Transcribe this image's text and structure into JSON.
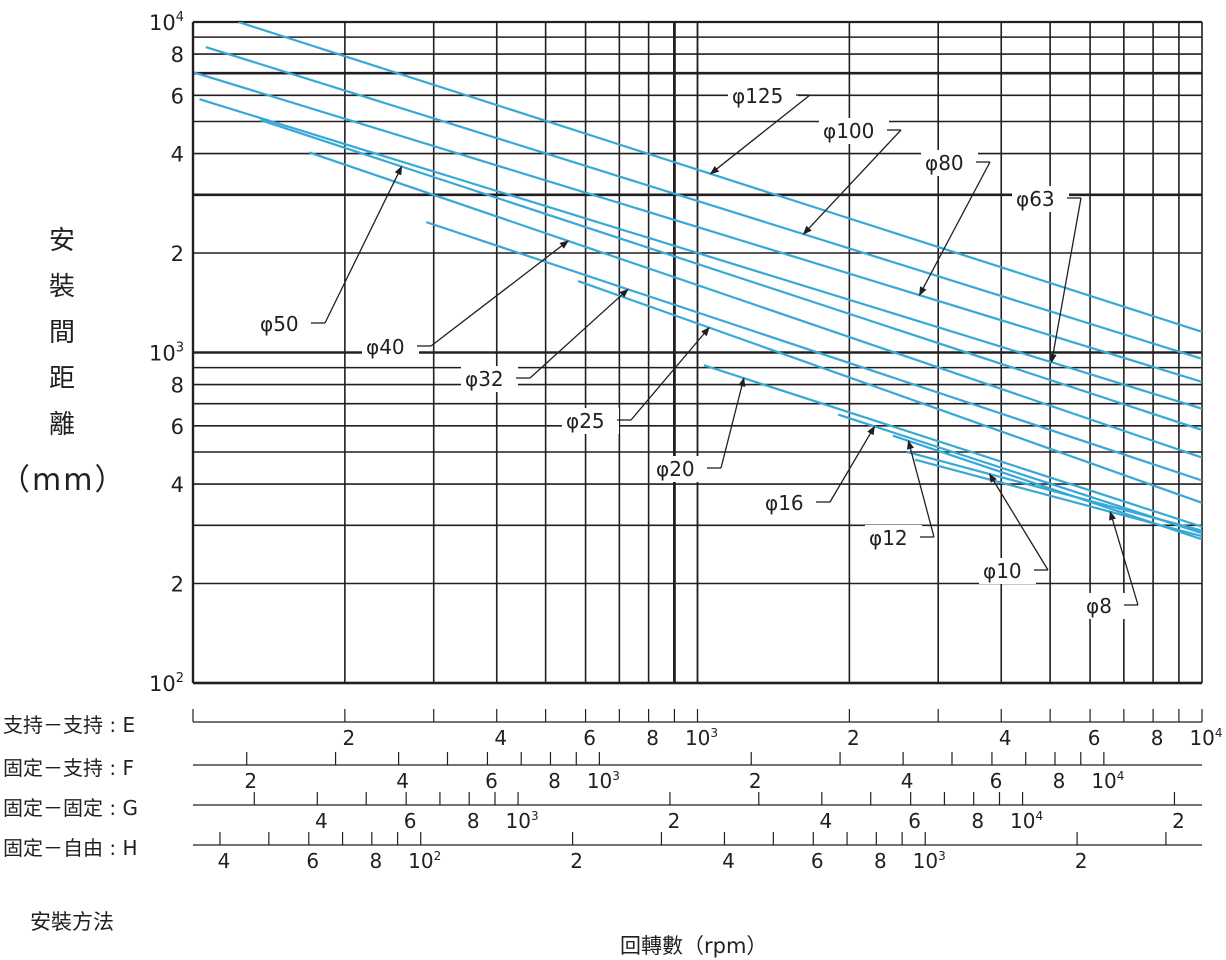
{
  "chart_data": {
    "type": "line",
    "xlabel": "回轉數（rpm）",
    "xscale": "log",
    "yscale": "log",
    "ylim": [
      100,
      10000
    ],
    "xlim_E": [
      100,
      10000
    ],
    "grid": true,
    "ylabel_chars": [
      "安",
      "裝",
      "間",
      "距",
      "離"
    ],
    "ylabel_unit": "（mm）",
    "y_ticks": [
      {
        "v": 10000,
        "b": "10",
        "e": "4"
      },
      {
        "v": 8000,
        "b": "8"
      },
      {
        "v": 6000,
        "b": "6"
      },
      {
        "v": 4000,
        "b": "4"
      },
      {
        "v": 2000,
        "b": "2"
      },
      {
        "v": 1000,
        "b": "10",
        "e": "3"
      },
      {
        "v": 800,
        "b": "8"
      },
      {
        "v": 600,
        "b": "6"
      },
      {
        "v": 400,
        "b": "4"
      },
      {
        "v": 200,
        "b": "2"
      },
      {
        "v": 100,
        "b": "10",
        "e": "2"
      }
    ],
    "mounting_methods": [
      {
        "name": "支持－支持",
        "code": "E",
        "factor": 1.0,
        "labels": [
          {
            "v": 200,
            "b": "2"
          },
          {
            "v": 400,
            "b": "4"
          },
          {
            "v": 600,
            "b": "6"
          },
          {
            "v": 800,
            "b": "8"
          },
          {
            "v": 1000,
            "b": "10",
            "e": "3"
          },
          {
            "v": 2000,
            "b": "2"
          },
          {
            "v": 4000,
            "b": "4"
          },
          {
            "v": 6000,
            "b": "6"
          },
          {
            "v": 8000,
            "b": "8"
          },
          {
            "v": 10000,
            "b": "10",
            "e": "4"
          }
        ]
      },
      {
        "name": "固定－支持",
        "code": "F",
        "factor": 1.565,
        "labels": [
          {
            "v": 200,
            "b": "2"
          },
          {
            "v": 400,
            "b": "4"
          },
          {
            "v": 600,
            "b": "6"
          },
          {
            "v": 800,
            "b": "8"
          },
          {
            "v": 1000,
            "b": "10",
            "e": "3"
          },
          {
            "v": 2000,
            "b": "2"
          },
          {
            "v": 4000,
            "b": "4"
          },
          {
            "v": 6000,
            "b": "6"
          },
          {
            "v": 8000,
            "b": "8"
          },
          {
            "v": 10000,
            "b": "10",
            "e": "4"
          }
        ]
      },
      {
        "name": "固定－固定",
        "code": "G",
        "factor": 2.268,
        "labels": [
          {
            "v": 400,
            "b": "4"
          },
          {
            "v": 600,
            "b": "6"
          },
          {
            "v": 800,
            "b": "8"
          },
          {
            "v": 1000,
            "b": "10",
            "e": "3"
          },
          {
            "v": 2000,
            "b": "2"
          },
          {
            "v": 4000,
            "b": "4"
          },
          {
            "v": 6000,
            "b": "6"
          },
          {
            "v": 8000,
            "b": "8"
          },
          {
            "v": 10000,
            "b": "10",
            "e": "4"
          },
          {
            "v": 20000,
            "b": "2"
          }
        ]
      },
      {
        "name": "固定－自由",
        "code": "H",
        "factor": 0.3537,
        "labels": [
          {
            "v": 40,
            "b": "4"
          },
          {
            "v": 60,
            "b": "6"
          },
          {
            "v": 80,
            "b": "8"
          },
          {
            "v": 100,
            "b": "10",
            "e": "2"
          },
          {
            "v": 200,
            "b": "2"
          },
          {
            "v": 400,
            "b": "4"
          },
          {
            "v": 600,
            "b": "6"
          },
          {
            "v": 800,
            "b": "8"
          },
          {
            "v": 1000,
            "b": "10",
            "e": "3"
          },
          {
            "v": 2000,
            "b": "2"
          }
        ]
      }
    ],
    "series": [
      {
        "name": "φ125",
        "points": [
          [
            123,
            10000
          ],
          [
            10000,
            1155
          ]
        ]
      },
      {
        "name": "φ100",
        "points": [
          [
            106,
            8400
          ],
          [
            10000,
            957
          ]
        ]
      },
      {
        "name": "φ80",
        "points": [
          [
            100,
            7050
          ],
          [
            10000,
            815
          ]
        ]
      },
      {
        "name": "φ63",
        "points": [
          [
            103,
            5840
          ],
          [
            10000,
            676
          ]
        ]
      },
      {
        "name": "φ50",
        "points": [
          [
            136,
            5050
          ],
          [
            10000,
            583
          ]
        ]
      },
      {
        "name": "φ40",
        "points": [
          [
            170,
            4030
          ],
          [
            10000,
            481
          ]
        ]
      },
      {
        "name": "φ32",
        "points": [
          [
            290,
            2480
          ],
          [
            10000,
            410
          ]
        ]
      },
      {
        "name": "φ25",
        "points": [
          [
            580,
            1645
          ],
          [
            10000,
            351
          ]
        ]
      },
      {
        "name": "φ20",
        "points": [
          [
            1030,
            915
          ],
          [
            10000,
            297
          ]
        ]
      },
      {
        "name": "φ16",
        "points": [
          [
            1900,
            649
          ],
          [
            10000,
            284
          ]
        ]
      },
      {
        "name": "φ12",
        "points": [
          [
            2440,
            560
          ],
          [
            10000,
            272
          ]
        ]
      }
    ],
    "annotations": [
      {
        "text": "φ125",
        "target": "φ125"
      },
      {
        "text": "φ100",
        "target": "φ100"
      },
      {
        "text": "φ80",
        "target": "φ80"
      },
      {
        "text": "φ63",
        "target": "φ63"
      },
      {
        "text": "φ50",
        "target": "φ50"
      },
      {
        "text": "φ40",
        "target": "φ40"
      },
      {
        "text": "φ32",
        "target": "φ32"
      },
      {
        "text": "φ25",
        "target": "φ25"
      },
      {
        "text": "φ20",
        "target": "φ20"
      },
      {
        "text": "φ16",
        "target": "φ16"
      },
      {
        "text": "φ12",
        "target": "φ12"
      },
      {
        "text": "φ10",
        "target": "φ10"
      },
      {
        "text": "φ8",
        "target": "φ8"
      }
    ],
    "line_color": "#36a9d6"
  },
  "footer": {
    "method_label": "安裝方法",
    "axis_title": "回轉數（rpm）"
  }
}
